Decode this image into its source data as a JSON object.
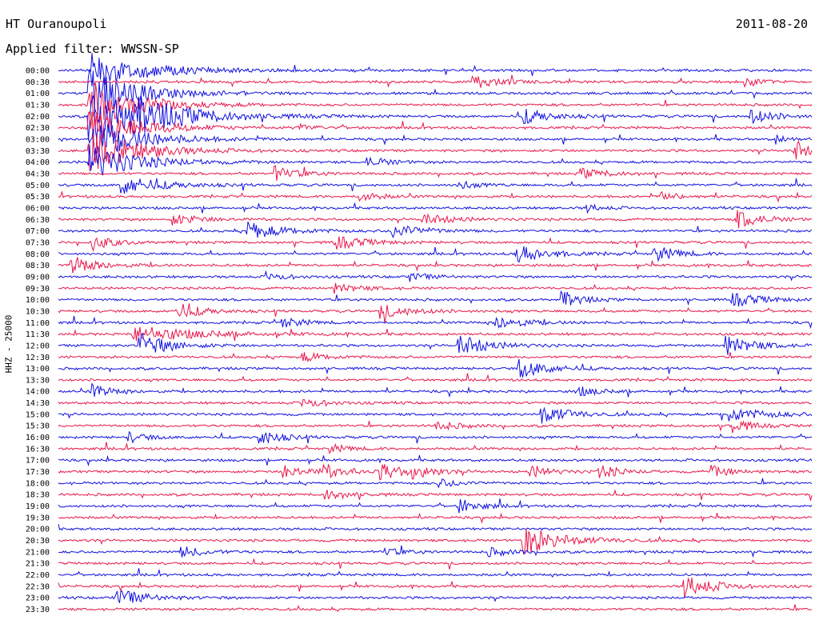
{
  "header": {
    "station": "HT Ouranoupoli",
    "date": "2011-08-20",
    "filter_label": "Applied filter: WWSSN-SP"
  },
  "yaxis_label": "HHZ - 25000",
  "colors": {
    "odd_trace": "#1010e0",
    "even_trace": "#e8174a"
  },
  "chart_data": {
    "type": "line",
    "title": "HT Ouranoupoli",
    "subtitle": "Applied filter: WWSSN-SP",
    "ylabel": "HHZ - 25000",
    "rows": [
      "00:00",
      "00:30",
      "01:00",
      "01:30",
      "02:00",
      "02:30",
      "03:00",
      "03:30",
      "04:00",
      "04:30",
      "05:00",
      "05:30",
      "06:00",
      "06:30",
      "07:00",
      "07:30",
      "08:00",
      "08:30",
      "09:00",
      "09:30",
      "10:00",
      "10:30",
      "11:00",
      "11:30",
      "12:00",
      "12:30",
      "13:00",
      "13:30",
      "14:00",
      "14:30",
      "15:00",
      "15:30",
      "16:00",
      "16:30",
      "17:00",
      "17:30",
      "18:00",
      "18:30",
      "19:00",
      "19:30",
      "20:00",
      "20:30",
      "21:00",
      "21:30",
      "22:00",
      "22:30",
      "23:00",
      "23:30"
    ],
    "row_minutes": 30,
    "events": [
      {
        "row": 0,
        "min": 1.2,
        "amp": 22,
        "dur": 3.0
      },
      {
        "row": 1,
        "min": 16.5,
        "amp": 9,
        "dur": 1.3
      },
      {
        "row": 1,
        "min": 27.3,
        "amp": 6,
        "dur": 0.8
      },
      {
        "row": 2,
        "min": 1.2,
        "amp": 30,
        "dur": 2.5
      },
      {
        "row": 3,
        "min": 1.2,
        "amp": 30,
        "dur": 2.5
      },
      {
        "row": 4,
        "min": 1.2,
        "amp": 34,
        "dur": 3.5
      },
      {
        "row": 4,
        "min": 3.2,
        "amp": 10,
        "dur": 2.0
      },
      {
        "row": 4,
        "min": 18.5,
        "amp": 9,
        "dur": 1.5
      },
      {
        "row": 4,
        "min": 27.5,
        "amp": 10,
        "dur": 1.2
      },
      {
        "row": 5,
        "min": 1.2,
        "amp": 25,
        "dur": 2.5
      },
      {
        "row": 5,
        "min": 9.5,
        "amp": 4,
        "dur": 1.0
      },
      {
        "row": 6,
        "min": 1.2,
        "amp": 28,
        "dur": 2.5
      },
      {
        "row": 6,
        "min": 28.5,
        "amp": 6,
        "dur": 0.6
      },
      {
        "row": 7,
        "min": 1.2,
        "amp": 28,
        "dur": 2.5
      },
      {
        "row": 7,
        "min": 29.3,
        "amp": 14,
        "dur": 0.7
      },
      {
        "row": 8,
        "min": 1.2,
        "amp": 22,
        "dur": 2.5
      },
      {
        "row": 8,
        "min": 12.3,
        "amp": 6,
        "dur": 1.2
      },
      {
        "row": 9,
        "min": 8.6,
        "amp": 9,
        "dur": 1.2
      },
      {
        "row": 9,
        "min": 20.8,
        "amp": 6,
        "dur": 1.5
      },
      {
        "row": 10,
        "min": 2.5,
        "amp": 12,
        "dur": 2.0
      },
      {
        "row": 10,
        "min": 15.8,
        "amp": 6,
        "dur": 1.0
      },
      {
        "row": 11,
        "min": 12.0,
        "amp": 6,
        "dur": 1.0
      },
      {
        "row": 11,
        "min": 24.0,
        "amp": 5,
        "dur": 1.0
      },
      {
        "row": 12,
        "min": 21.0,
        "amp": 5,
        "dur": 0.8
      },
      {
        "row": 13,
        "min": 4.5,
        "amp": 7,
        "dur": 1.5
      },
      {
        "row": 13,
        "min": 14.5,
        "amp": 7,
        "dur": 1.5
      },
      {
        "row": 13,
        "min": 27.0,
        "amp": 12,
        "dur": 1.2
      },
      {
        "row": 14,
        "min": 7.5,
        "amp": 11,
        "dur": 1.8
      },
      {
        "row": 14,
        "min": 13.3,
        "amp": 9,
        "dur": 1.5
      },
      {
        "row": 15,
        "min": 1.3,
        "amp": 11,
        "dur": 1.0
      },
      {
        "row": 15,
        "min": 11.0,
        "amp": 9,
        "dur": 1.5
      },
      {
        "row": 16,
        "min": 18.2,
        "amp": 12,
        "dur": 1.5
      },
      {
        "row": 16,
        "min": 23.7,
        "amp": 10,
        "dur": 1.2
      },
      {
        "row": 17,
        "min": 0.5,
        "amp": 12,
        "dur": 1.3
      },
      {
        "row": 18,
        "min": 8.3,
        "amp": 5,
        "dur": 1.0
      },
      {
        "row": 18,
        "min": 14.0,
        "amp": 5,
        "dur": 1.0
      },
      {
        "row": 19,
        "min": 11.0,
        "amp": 6,
        "dur": 1.2
      },
      {
        "row": 20,
        "min": 20.0,
        "amp": 11,
        "dur": 1.0
      },
      {
        "row": 20,
        "min": 26.8,
        "amp": 9,
        "dur": 1.5
      },
      {
        "row": 21,
        "min": 4.7,
        "amp": 11,
        "dur": 1.2
      },
      {
        "row": 21,
        "min": 12.8,
        "amp": 9,
        "dur": 1.5
      },
      {
        "row": 22,
        "min": 8.9,
        "amp": 7,
        "dur": 1.0
      },
      {
        "row": 22,
        "min": 17.4,
        "amp": 8,
        "dur": 1.5
      },
      {
        "row": 23,
        "min": 3.0,
        "amp": 10,
        "dur": 3.5
      },
      {
        "row": 24,
        "min": 3.2,
        "amp": 16,
        "dur": 1.5
      },
      {
        "row": 24,
        "min": 15.9,
        "amp": 14,
        "dur": 1.5
      },
      {
        "row": 24,
        "min": 26.5,
        "amp": 13,
        "dur": 1.5
      },
      {
        "row": 25,
        "min": 9.7,
        "amp": 6,
        "dur": 1.2
      },
      {
        "row": 26,
        "min": 18.3,
        "amp": 12,
        "dur": 1.5
      },
      {
        "row": 28,
        "min": 1.3,
        "amp": 9,
        "dur": 1.0
      },
      {
        "row": 28,
        "min": 20.6,
        "amp": 6,
        "dur": 1.2
      },
      {
        "row": 29,
        "min": 9.7,
        "amp": 6,
        "dur": 1.2
      },
      {
        "row": 30,
        "min": 19.2,
        "amp": 12,
        "dur": 1.5
      },
      {
        "row": 30,
        "min": 26.4,
        "amp": 10,
        "dur": 2.0
      },
      {
        "row": 31,
        "min": 15.0,
        "amp": 6,
        "dur": 1.2
      },
      {
        "row": 31,
        "min": 26.7,
        "amp": 10,
        "dur": 1.0
      },
      {
        "row": 32,
        "min": 2.8,
        "amp": 6,
        "dur": 1.0
      },
      {
        "row": 32,
        "min": 8.0,
        "amp": 9,
        "dur": 1.2
      },
      {
        "row": 33,
        "min": 10.8,
        "amp": 5,
        "dur": 1.0
      },
      {
        "row": 35,
        "min": 8.9,
        "amp": 10,
        "dur": 1.0
      },
      {
        "row": 35,
        "min": 10.4,
        "amp": 10,
        "dur": 1.2
      },
      {
        "row": 35,
        "min": 12.8,
        "amp": 10,
        "dur": 1.2
      },
      {
        "row": 35,
        "min": 14.1,
        "amp": 9,
        "dur": 1.0
      },
      {
        "row": 35,
        "min": 18.8,
        "amp": 8,
        "dur": 1.0
      },
      {
        "row": 35,
        "min": 21.5,
        "amp": 9,
        "dur": 1.0
      },
      {
        "row": 35,
        "min": 26.0,
        "amp": 7,
        "dur": 1.0
      },
      {
        "row": 36,
        "min": 15.0,
        "amp": 6,
        "dur": 1.2
      },
      {
        "row": 37,
        "min": 10.6,
        "amp": 7,
        "dur": 1.2
      },
      {
        "row": 38,
        "min": 15.9,
        "amp": 10,
        "dur": 1.0
      },
      {
        "row": 41,
        "min": 18.5,
        "amp": 18,
        "dur": 2.0
      },
      {
        "row": 42,
        "min": 4.9,
        "amp": 7,
        "dur": 1.2
      },
      {
        "row": 42,
        "min": 13.0,
        "amp": 5,
        "dur": 1.0
      },
      {
        "row": 42,
        "min": 17.0,
        "amp": 6,
        "dur": 1.2
      },
      {
        "row": 45,
        "min": 24.9,
        "amp": 14,
        "dur": 1.5
      },
      {
        "row": 46,
        "min": 2.3,
        "amp": 11,
        "dur": 1.5
      }
    ]
  }
}
